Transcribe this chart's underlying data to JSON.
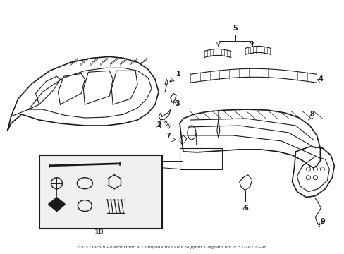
{
  "title": "2005 Lincoln Aviator Hood & Components Latch Support Diagram for 2C5Z-16700-AB",
  "background_color": "#ffffff",
  "line_color": "#1a1a1a",
  "box_fill": "#f0f0f0",
  "figsize": [
    4.89,
    3.6
  ],
  "dpi": 100
}
